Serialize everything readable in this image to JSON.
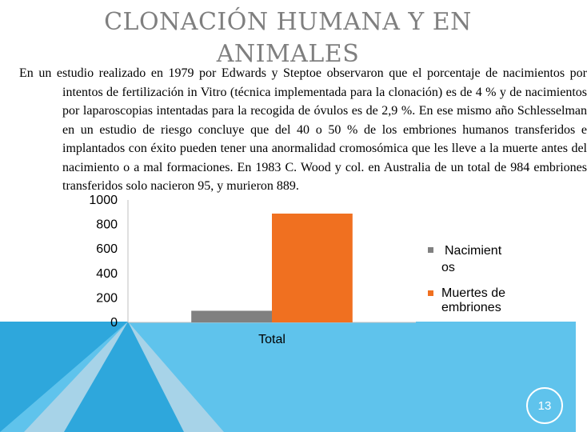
{
  "slide": {
    "title": "CLONACIÓN HUMANA Y EN ANIMALES",
    "body": "En un estudio realizado en 1979 por Edwards y Steptoe observaron que el porcentaje de nacimientos por intentos de fertilización in Vitro (técnica implementada para la clonación) es de 4 % y de nacimientos por laparoscopias intentadas para la recogida de óvulos es de 2,9 %. En ese mismo año Schlesselman en un estudio de riesgo concluye que del 40 o 50 % de los embriones humanos transferidos e implantados con éxito pueden tener una anormalidad cromosómica que les lleve a la muerte antes del nacimiento o a mal formaciones. En 1983 C. Wood y col. en Australia de un total de 984 embriones transferidos solo nacieron 95, y murieron 889.",
    "page_number": "13"
  },
  "colors": {
    "title": "#7f7f7f",
    "accent_blue": "#2ea7dc",
    "accent_light_blue": "#5fc3ec",
    "triangle_light": "#a7d3e8",
    "series_nacimientos": "#808080",
    "series_muertes": "#f07020"
  },
  "chart_data": {
    "type": "bar",
    "categories": [
      "Total"
    ],
    "series": [
      {
        "name": "Nacimientos",
        "values": [
          95
        ],
        "color": "#808080"
      },
      {
        "name": "Muertes de embriones",
        "values": [
          889
        ],
        "color": "#f07020"
      }
    ],
    "ylim": [
      0,
      1000
    ],
    "yticks": [
      "0",
      "200",
      "400",
      "600",
      "800",
      "1000"
    ],
    "legend": [
      {
        "label": "Nacimient os",
        "color": "#808080"
      },
      {
        "label": "Muertes de embriones",
        "color": "#f07020"
      }
    ],
    "legend_position": "right",
    "grid": false
  }
}
